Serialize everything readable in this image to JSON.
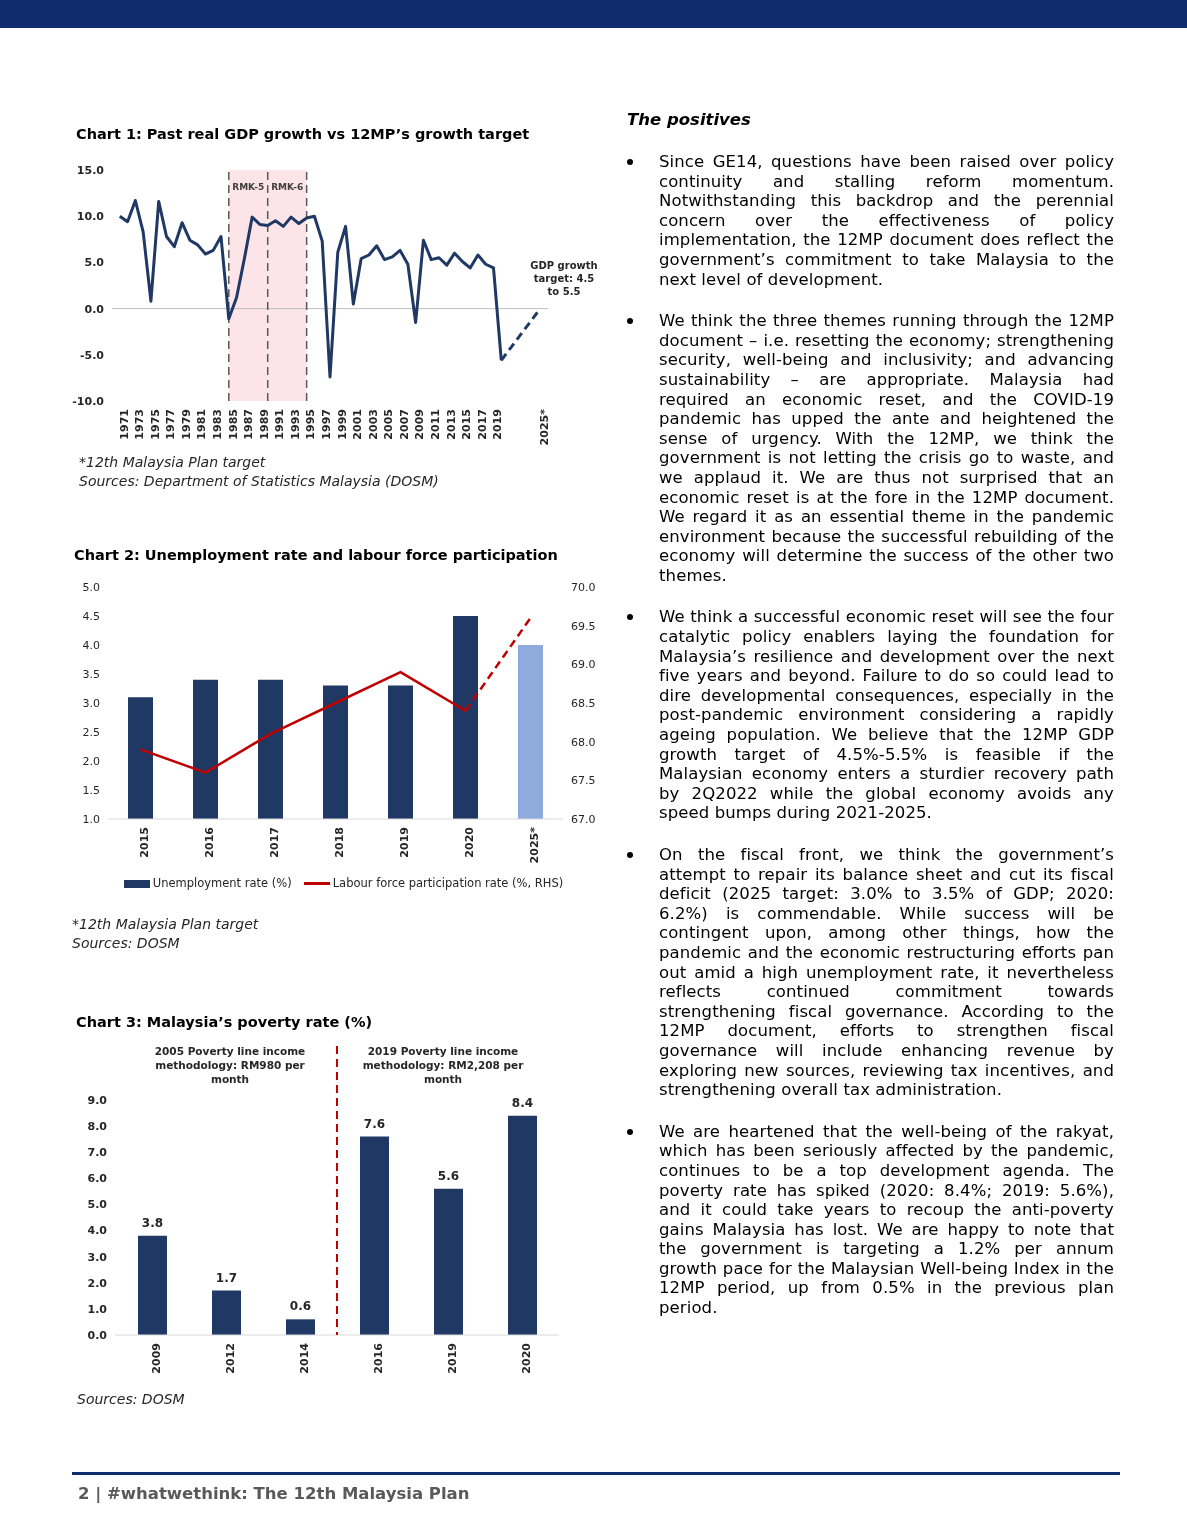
{
  "chart_data": [
    {
      "type": "line",
      "title": "Chart 1: Past real GDP growth vs 12MP’s growth target",
      "series": [
        {
          "color": "#203864",
          "x": [
            1971,
            1972,
            1973,
            1974,
            1975,
            1976,
            1977,
            1978,
            1979,
            1980,
            1981,
            1982,
            1983,
            1984,
            1985,
            1986,
            1987,
            1988,
            1989,
            1990,
            1991,
            1992,
            1993,
            1994,
            1995,
            1996,
            1997,
            1998,
            1999,
            2000,
            2001,
            2002,
            2003,
            2004,
            2005,
            2006,
            2007,
            2008,
            2009,
            2010,
            2011,
            2012,
            2013,
            2014,
            2015,
            2016,
            2017,
            2018,
            2019,
            2020
          ],
          "values": [
            10.0,
            9.4,
            11.7,
            8.3,
            0.8,
            11.6,
            7.8,
            6.7,
            9.3,
            7.4,
            6.9,
            5.9,
            6.3,
            7.8,
            -1.1,
            1.2,
            5.4,
            9.9,
            9.1,
            9.0,
            9.5,
            8.9,
            9.9,
            9.2,
            9.8,
            10.0,
            7.3,
            -7.4,
            6.1,
            8.9,
            0.5,
            5.4,
            5.8,
            6.8,
            5.3,
            5.6,
            6.3,
            4.8,
            -1.5,
            7.4,
            5.3,
            5.5,
            4.7,
            6.0,
            5.1,
            4.4,
            5.8,
            4.8,
            4.4,
            -5.6
          ]
        },
        {
          "color": "#203864",
          "x": [
            2020,
            2025
          ],
          "values": [
            -5.6,
            0.0
          ],
          "line_style": "dashed"
        }
      ],
      "xlim": [
        1970,
        2026
      ],
      "xticks": [
        1971,
        1973,
        1975,
        1977,
        1979,
        1981,
        1983,
        1985,
        1987,
        1989,
        1991,
        1993,
        1995,
        1997,
        1999,
        2001,
        2003,
        2005,
        2007,
        2009,
        2011,
        2013,
        2015,
        2017,
        2019,
        {
          "value": 2025,
          "label": "2025*"
        }
      ],
      "ylim": [
        -10,
        15
      ],
      "yticks": [
        {
          "value": -10,
          "label": "-10.0"
        },
        {
          "value": -5,
          "label": "-5.0"
        },
        {
          "value": 0,
          "label": "0.0"
        },
        {
          "value": 5,
          "label": "5.0"
        },
        {
          "value": 10,
          "label": "10.0"
        },
        {
          "value": 15,
          "label": "15.0"
        }
      ],
      "bands": [
        {
          "axis": "x",
          "from": 1985,
          "to": 1990,
          "label": "RMK-5",
          "color": "#fce4e8"
        },
        {
          "axis": "x",
          "from": 1990,
          "to": 1995,
          "label": "RMK-6",
          "color": "#fce4e8"
        }
      ],
      "ref_lines": [
        {
          "axis": "y",
          "value": 0,
          "color": "#bfbfbf",
          "line_style": "solid"
        },
        {
          "axis": "x",
          "value": 1985,
          "color": "#595959",
          "line_style": "dashed"
        },
        {
          "axis": "x",
          "value": 1990,
          "color": "#595959",
          "line_style": "dashed"
        },
        {
          "axis": "x",
          "value": 1995,
          "color": "#595959",
          "line_style": "dashed"
        }
      ],
      "marker": "none",
      "line_style": "solid",
      "annotations": [
        "GDP growth target: 4.5 to 5.5",
        "*12th Malaysia Plan target",
        "Sources: Department of Statistics Malaysia (DOSM)"
      ]
    },
    {
      "type": "bar",
      "title": "Chart 2: Unemployment rate and labour force participation",
      "categories": [
        "2015",
        "2016",
        "2017",
        "2018",
        "2019",
        "2020",
        "2025*"
      ],
      "series": [
        {
          "name": "Unemployment rate (%)",
          "type": "bar",
          "color": "#203864",
          "colors": [
            "#203864",
            "#203864",
            "#203864",
            "#203864",
            "#203864",
            "#203864",
            "#8faadc"
          ],
          "values": [
            3.1,
            3.4,
            3.4,
            3.3,
            3.3,
            4.5,
            4.0
          ]
        },
        {
          "name": "Labour force participation rate (%, RHS)",
          "type": "line",
          "axis": "y2",
          "color": "#c00000",
          "values": [
            67.9,
            67.6,
            68.1,
            68.5,
            68.9,
            68.4,
            null
          ]
        },
        {
          "type": "line",
          "axis": "y2",
          "color": "#c00000",
          "line_style": "dashed",
          "values": [
            null,
            null,
            null,
            null,
            null,
            68.4,
            69.6
          ]
        }
      ],
      "ylim": [
        1,
        5
      ],
      "yticks": [
        {
          "value": 1,
          "label": "1.0"
        },
        1.5,
        {
          "value": 2,
          "label": "2.0"
        },
        2.5,
        {
          "value": 3,
          "label": "3.0"
        },
        3.5,
        {
          "value": 4,
          "label": "4.0"
        },
        4.5,
        {
          "value": 5,
          "label": "5.0"
        }
      ],
      "y2lim": [
        67,
        70
      ],
      "y2ticks": [
        {
          "value": 67,
          "label": "67.0"
        },
        67.5,
        {
          "value": 68,
          "label": "68.0"
        },
        68.5,
        {
          "value": 69,
          "label": "69.0"
        },
        69.5,
        {
          "value": 70,
          "label": "70.0"
        }
      ],
      "legend": "bottom",
      "marker": "none",
      "line_style": "solid",
      "annotations": [
        "*12th Malaysia Plan target",
        "Sources: DOSM"
      ]
    },
    {
      "type": "bar",
      "title": "Chart 3: Malaysia’s poverty rate (%)",
      "categories": [
        "2009",
        "2012",
        "2014",
        "2016",
        "2019",
        "2020"
      ],
      "values": [
        3.8,
        1.7,
        0.6,
        7.6,
        5.6,
        8.4
      ],
      "color": "#203864",
      "data_labels": true,
      "ylim": [
        0,
        9
      ],
      "yticks": [
        {
          "value": 0,
          "label": "0.0"
        },
        {
          "value": 1,
          "label": "1.0"
        },
        {
          "value": 2,
          "label": "2.0"
        },
        {
          "value": 3,
          "label": "3.0"
        },
        {
          "value": 4,
          "label": "4.0"
        },
        {
          "value": 5,
          "label": "5.0"
        },
        {
          "value": 6,
          "label": "6.0"
        },
        {
          "value": 7,
          "label": "7.0"
        },
        {
          "value": 8,
          "label": "8.0"
        },
        {
          "value": 9,
          "label": "9.0"
        }
      ],
      "ref_lines": [
        {
          "axis": "x",
          "value": "2014",
          "color": "#c00000",
          "line_style": "dashed"
        }
      ],
      "annotations": [
        "2005 Poverty line income methodology: RM980 per month",
        "2019 Poverty line income methodology: RM2,208 per month",
        "Sources: DOSM"
      ]
    },
    {
      "type": "other",
      "title": "The positives",
      "annotations": [
        "Since GE14, questions have been raised over policy continuity and stalling reform momentum. Notwithstanding this backdrop and the perennial concern over the effectiveness of policy implementation, the 12MP document does reflect the government’s commitment to take Malaysia to the next level of development.",
        "We think the three themes running through the 12MP document – i.e. resetting the economy; strengthening security, well-being and inclusivity; and advancing sustainability – are appropriate. Malaysia had required an economic reset, and the COVID-19 pandemic has upped the ante and heightened the sense of urgency. With the 12MP, we think the government is not letting the crisis go to waste, and we applaud it. We are thus not surprised that an economic reset is at the fore in the 12MP document. We regard it as an essential theme in the pandemic environment because the successful rebuilding of the economy will determine the success of the other two themes.",
        "We think a successful economic reset will see the four catalytic policy enablers laying the foundation for Malaysia’s resilience and development over the next five years and beyond. Failure to do so could lead to dire developmental consequences, especially in the post-pandemic environment considering a rapidly ageing population. We believe that the 12MP GDP growth target of 4.5%-5.5% is feasible if the Malaysian economy enters a sturdier recovery path by 2Q2022 while the global economy avoids any speed bumps during 2021-2025.",
        "On the fiscal front, we think the government’s attempt to repair its balance sheet and cut its fiscal deficit (2025 target: 3.0% to 3.5% of GDP; 2020: 6.2%) is commendable. While success will be contingent upon, among other things, how the pandemic and the economic restructuring efforts pan out amid a high unemployment rate, it nevertheless reflects continued commitment towards strengthening fiscal governance. According to the 12MP document, efforts to strengthen fiscal governance will include enhancing revenue by exploring new sources, reviewing tax incentives, and strengthening overall tax administration.",
        "We are heartened that the well-being of the rakyat, which has been seriously affected by the pandemic, continues to be a top development agenda. The poverty rate has spiked (2020: 8.4%; 2019: 5.6%), and it could take years to recoup the anti-poverty gains Malaysia has lost. We are happy to note that the government is targeting a 1.2% per annum growth pace for the Malaysian Well-being Index in the 12MP period, up from 0.5% in the previous plan period."
      ]
    },
    {
      "type": "other",
      "annotations": [
        "2 | #whatwethink: The 12th Malaysia Plan"
      ]
    }
  ]
}
